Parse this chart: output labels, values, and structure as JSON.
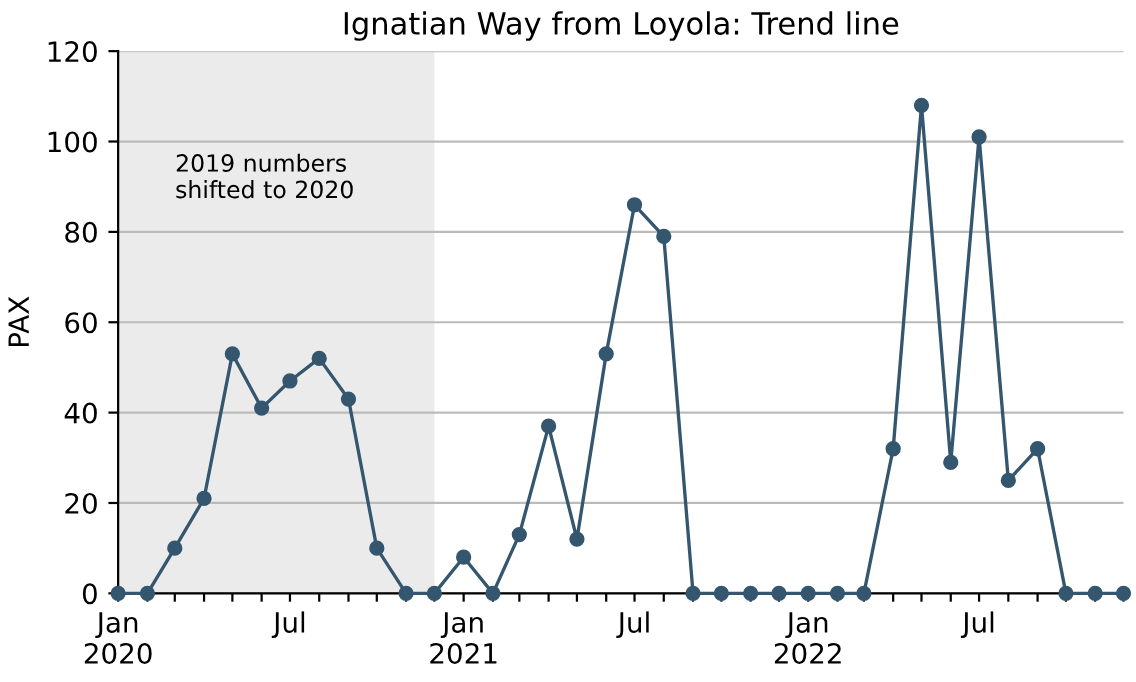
{
  "chart_data": {
    "type": "line",
    "title": "Ignatian Way from Loyola: Trend line",
    "ylabel": "PAX",
    "x": [
      "2020-01",
      "2020-02",
      "2020-03",
      "2020-04",
      "2020-05",
      "2020-06",
      "2020-07",
      "2020-08",
      "2020-09",
      "2020-10",
      "2020-11",
      "2020-12",
      "2021-01",
      "2021-02",
      "2021-03",
      "2021-04",
      "2021-05",
      "2021-06",
      "2021-07",
      "2021-08",
      "2021-09",
      "2021-10",
      "2021-11",
      "2021-12",
      "2022-01",
      "2022-02",
      "2022-03",
      "2022-04",
      "2022-05",
      "2022-06",
      "2022-07",
      "2022-08",
      "2022-09",
      "2022-10",
      "2022-11",
      "2022-12"
    ],
    "series": [
      {
        "color": "#34566f",
        "values": [
          0,
          0,
          10,
          21,
          53,
          41,
          47,
          52,
          43,
          10,
          0,
          0,
          8,
          0,
          13,
          37,
          12,
          53,
          86,
          79,
          0,
          0,
          0,
          0,
          0,
          0,
          0,
          32,
          108,
          29,
          101,
          25,
          32,
          0,
          0,
          0
        ]
      }
    ],
    "marker": "circle",
    "line_style": "solid",
    "grid": "y",
    "xlim": [
      "2020-01",
      "2022-12"
    ],
    "ylim": [
      0,
      120
    ],
    "yticks": [
      0,
      20,
      40,
      60,
      80,
      100,
      120
    ],
    "xticks": [
      {
        "value": "2020-01",
        "label": "Jan\n2020"
      },
      {
        "value": "2020-02",
        "label": null
      },
      {
        "value": "2020-03",
        "label": null
      },
      {
        "value": "2020-04",
        "label": null
      },
      {
        "value": "2020-05",
        "label": null
      },
      {
        "value": "2020-06",
        "label": null
      },
      {
        "value": "2020-07",
        "label": "Jul"
      },
      {
        "value": "2020-08",
        "label": null
      },
      {
        "value": "2020-09",
        "label": null
      },
      {
        "value": "2020-10",
        "label": null
      },
      {
        "value": "2020-11",
        "label": null
      },
      {
        "value": "2020-12",
        "label": null
      },
      {
        "value": "2021-01",
        "label": "Jan\n2021"
      },
      {
        "value": "2021-02",
        "label": null
      },
      {
        "value": "2021-03",
        "label": null
      },
      {
        "value": "2021-04",
        "label": null
      },
      {
        "value": "2021-05",
        "label": null
      },
      {
        "value": "2021-06",
        "label": null
      },
      {
        "value": "2021-07",
        "label": "Jul"
      },
      {
        "value": "2021-08",
        "label": null
      },
      {
        "value": "2021-09",
        "label": null
      },
      {
        "value": "2021-10",
        "label": null
      },
      {
        "value": "2021-11",
        "label": null
      },
      {
        "value": "2021-12",
        "label": null
      },
      {
        "value": "2022-01",
        "label": "Jan\n2022"
      },
      {
        "value": "2022-02",
        "label": null
      },
      {
        "value": "2022-03",
        "label": null
      },
      {
        "value": "2022-04",
        "label": null
      },
      {
        "value": "2022-05",
        "label": null
      },
      {
        "value": "2022-06",
        "label": null
      },
      {
        "value": "2022-07",
        "label": "Jul"
      },
      {
        "value": "2022-08",
        "label": null
      },
      {
        "value": "2022-09",
        "label": null
      },
      {
        "value": "2022-10",
        "label": null
      },
      {
        "value": "2022-11",
        "label": null
      },
      {
        "value": "2022-12",
        "label": null
      }
    ],
    "bands": [
      {
        "axis": "x",
        "from": "2020-01",
        "to": "2020-12",
        "label": "2019 numbers\nshifted to 2020",
        "color": "#ebebeb"
      }
    ]
  }
}
